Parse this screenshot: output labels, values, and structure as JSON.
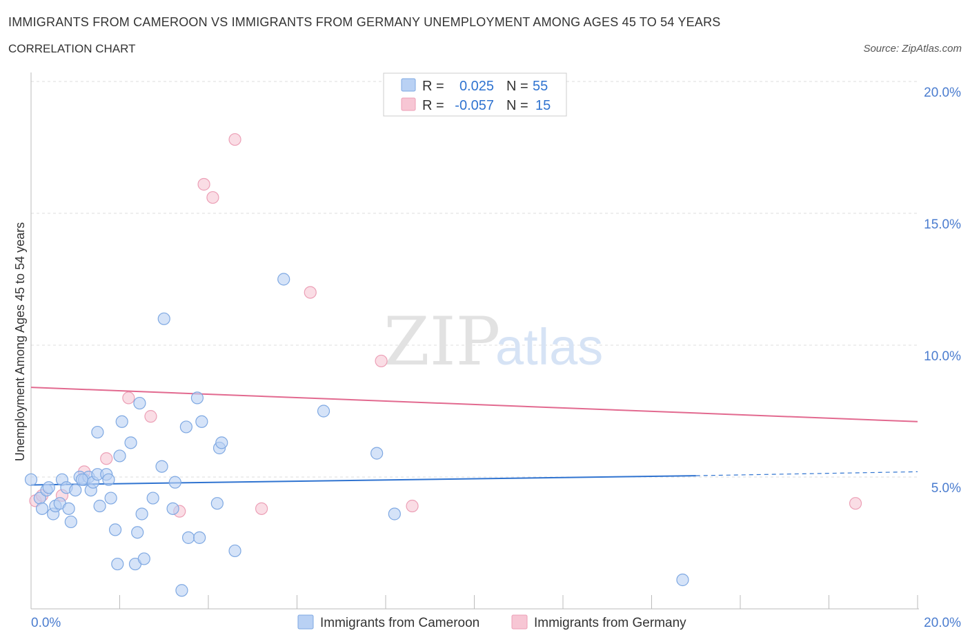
{
  "title": "IMMIGRANTS FROM CAMEROON VS IMMIGRANTS FROM GERMANY UNEMPLOYMENT AMONG AGES 45 TO 54 YEARS",
  "subtitle": "CORRELATION CHART",
  "source": "Source: ZipAtlas.com",
  "watermark": {
    "zip": "ZIP",
    "atlas": "atlas"
  },
  "colors": {
    "cameroon_fill": "#b9d1f4",
    "cameroon_stroke": "#7ea8e2",
    "cameroon_line": "#2f73d0",
    "germany_fill": "#f7c6d4",
    "germany_stroke": "#ec9fb6",
    "germany_line": "#e2698f",
    "axis_label": "#4a7ccf",
    "grid": "#dddddd"
  },
  "legend": {
    "cameroon": {
      "r_label": "R =",
      "r_value": "0.025",
      "n_label": "N =",
      "n_value": "55"
    },
    "germany": {
      "r_label": "R =",
      "r_value": "-0.057",
      "n_label": "N =",
      "n_value": "15"
    }
  },
  "chart_data": {
    "type": "scatter",
    "title": "IMMIGRANTS FROM CAMEROON VS IMMIGRANTS FROM GERMANY UNEMPLOYMENT AMONG AGES 45 TO 54 YEARS",
    "xlabel": "",
    "ylabel": "Unemployment Among Ages 45 to 54 years",
    "xlim": [
      0,
      20
    ],
    "ylim": [
      0,
      20
    ],
    "x_tick_labels": [
      "0.0%",
      "20.0%"
    ],
    "y_ticks": [
      5,
      10,
      15,
      20
    ],
    "y_tick_labels": [
      "5.0%",
      "10.0%",
      "15.0%",
      "20.0%"
    ],
    "grid": true,
    "legend_position": "top-center",
    "series": [
      {
        "name": "Immigrants from Cameroon",
        "R": 0.025,
        "N": 55,
        "trend": {
          "x": [
            0,
            15
          ],
          "y": [
            4.7,
            5.05
          ],
          "dashed_extension_to_x": 20,
          "dashed_end_y": 5.2
        },
        "points": [
          [
            0.0,
            4.9
          ],
          [
            0.2,
            4.2
          ],
          [
            0.25,
            3.8
          ],
          [
            0.35,
            4.5
          ],
          [
            0.4,
            4.6
          ],
          [
            0.5,
            3.6
          ],
          [
            0.55,
            3.9
          ],
          [
            0.65,
            4.0
          ],
          [
            0.7,
            4.9
          ],
          [
            0.8,
            4.6
          ],
          [
            0.85,
            3.8
          ],
          [
            0.9,
            3.3
          ],
          [
            1.0,
            4.5
          ],
          [
            1.1,
            5.0
          ],
          [
            1.2,
            4.9
          ],
          [
            1.3,
            5.0
          ],
          [
            1.35,
            4.5
          ],
          [
            1.4,
            4.8
          ],
          [
            1.5,
            5.1
          ],
          [
            1.5,
            6.7
          ],
          [
            1.55,
            3.9
          ],
          [
            1.7,
            5.1
          ],
          [
            1.75,
            4.9
          ],
          [
            1.8,
            4.2
          ],
          [
            1.9,
            3.0
          ],
          [
            1.95,
            1.7
          ],
          [
            2.0,
            5.8
          ],
          [
            2.05,
            7.1
          ],
          [
            2.25,
            6.3
          ],
          [
            2.35,
            1.7
          ],
          [
            2.4,
            2.9
          ],
          [
            2.45,
            7.8
          ],
          [
            2.55,
            1.9
          ],
          [
            2.5,
            3.6
          ],
          [
            2.75,
            4.2
          ],
          [
            2.95,
            5.4
          ],
          [
            3.0,
            11.0
          ],
          [
            3.2,
            3.8
          ],
          [
            3.25,
            4.8
          ],
          [
            3.4,
            0.7
          ],
          [
            3.5,
            6.9
          ],
          [
            3.55,
            2.7
          ],
          [
            3.75,
            8.0
          ],
          [
            3.8,
            2.7
          ],
          [
            3.85,
            7.1
          ],
          [
            4.2,
            4.0
          ],
          [
            4.25,
            6.1
          ],
          [
            4.3,
            6.3
          ],
          [
            4.6,
            2.2
          ],
          [
            5.7,
            12.5
          ],
          [
            6.6,
            7.5
          ],
          [
            7.8,
            5.9
          ],
          [
            8.2,
            3.6
          ],
          [
            14.7,
            1.1
          ],
          [
            1.15,
            4.9
          ]
        ]
      },
      {
        "name": "Immigrants from Germany",
        "R": -0.057,
        "N": 15,
        "trend": {
          "x": [
            0,
            20
          ],
          "y": [
            8.4,
            7.1
          ]
        },
        "points": [
          [
            0.1,
            4.1
          ],
          [
            0.25,
            4.3
          ],
          [
            0.7,
            4.3
          ],
          [
            1.2,
            5.2
          ],
          [
            1.7,
            5.7
          ],
          [
            2.2,
            8.0
          ],
          [
            2.7,
            7.3
          ],
          [
            3.35,
            3.7
          ],
          [
            3.9,
            16.1
          ],
          [
            4.1,
            15.6
          ],
          [
            4.6,
            17.8
          ],
          [
            5.2,
            3.8
          ],
          [
            6.3,
            12.0
          ],
          [
            7.9,
            9.4
          ],
          [
            8.6,
            3.9
          ]
        ]
      }
    ],
    "extra_germany_point": [
      18.6,
      4.0
    ]
  },
  "bottom_legend": {
    "cameroon": "Immigrants from Cameroon",
    "germany": "Immigrants from Germany"
  }
}
